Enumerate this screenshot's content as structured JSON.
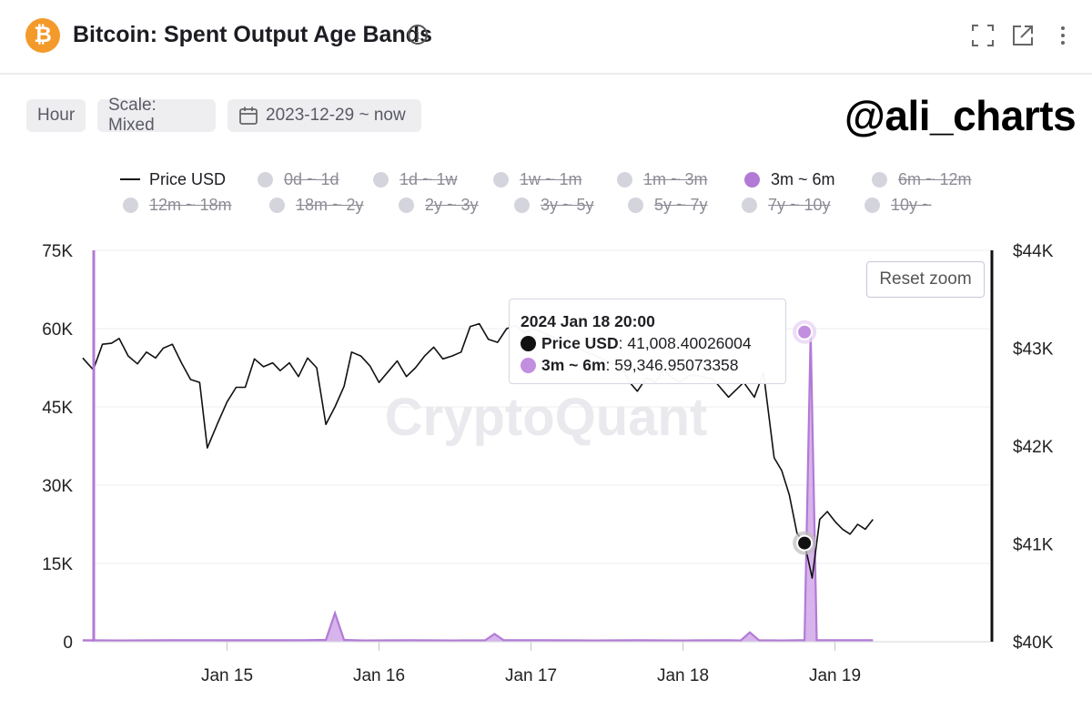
{
  "header": {
    "title": "Bitcoin: Spent Output Age Bands",
    "logo_glyph": "₿",
    "info_glyph": "i",
    "icons": [
      "fullscreen-icon",
      "external-link-icon",
      "more-vertical-icon"
    ]
  },
  "controls": {
    "interval": "Hour",
    "scale": "Scale: Mixed",
    "date_range": "2023-12-29 ~ now"
  },
  "watermark_handle": "@ali_charts",
  "watermark_brand": "CryptoQuant",
  "reset_zoom": "Reset zoom",
  "legend": [
    {
      "label": "Price USD",
      "state": "on",
      "kind": "line"
    },
    {
      "label": "0d ~ 1d",
      "state": "off"
    },
    {
      "label": "1d ~ 1w",
      "state": "off"
    },
    {
      "label": "1w ~ 1m",
      "state": "off"
    },
    {
      "label": "1m ~ 3m",
      "state": "off"
    },
    {
      "label": "3m ~ 6m",
      "state": "on"
    },
    {
      "label": "6m ~ 12m",
      "state": "off"
    },
    {
      "label": "12m ~ 18m",
      "state": "off"
    },
    {
      "label": "18m ~ 2y",
      "state": "off"
    },
    {
      "label": "2y ~ 3y",
      "state": "off"
    },
    {
      "label": "3y ~ 5y",
      "state": "off"
    },
    {
      "label": "5y ~ 7y",
      "state": "off"
    },
    {
      "label": "7y ~ 10y",
      "state": "off"
    },
    {
      "label": "10y ~",
      "state": "off"
    }
  ],
  "tooltip": {
    "title": "2024 Jan 18 20:00",
    "rows": [
      {
        "name": "Price USD",
        "value": "41,008.40026004",
        "color": "#111111"
      },
      {
        "name": "3m ~ 6m",
        "value": "59,346.95073358",
        "color": "#c28ee0"
      }
    ]
  },
  "colors": {
    "accent": "#b27ad6",
    "area": "#c99be4",
    "price_line": "#111111",
    "grid": "#ececf1"
  },
  "chart_data": {
    "type": "line",
    "x_tick_labels": [
      "Jan 15",
      "Jan 16",
      "Jan 17",
      "Jan 18",
      "Jan 19"
    ],
    "x_tick_days": [
      15,
      16,
      17,
      18,
      19
    ],
    "x_range_days": [
      14.0,
      19.95
    ],
    "y_left": {
      "ticks": [
        "0",
        "15K",
        "30K",
        "45K",
        "60K",
        "75K"
      ],
      "tick_values": [
        0,
        15000,
        30000,
        45000,
        60000,
        75000
      ],
      "range": [
        0,
        75000
      ]
    },
    "y_right": {
      "ticks": [
        "$40K",
        "$41K",
        "$42K",
        "$43K",
        "$44K"
      ],
      "tick_values": [
        40000,
        41000,
        42000,
        43000,
        44000
      ],
      "range": [
        40000,
        44000
      ]
    },
    "grid": true,
    "series": [
      {
        "name": "Price USD",
        "axis": "right",
        "type": "line",
        "x_day": [
          14.05,
          14.12,
          14.18,
          14.24,
          14.29,
          14.35,
          14.41,
          14.47,
          14.53,
          14.58,
          14.64,
          14.7,
          14.76,
          14.82,
          14.87,
          14.94,
          15.0,
          15.06,
          15.12,
          15.18,
          15.24,
          15.3,
          15.35,
          15.41,
          15.47,
          15.53,
          15.59,
          15.65,
          15.71,
          15.77,
          15.82,
          15.88,
          15.94,
          16.0,
          16.06,
          16.12,
          16.18,
          16.24,
          16.3,
          16.36,
          16.42,
          16.48,
          16.54,
          16.6,
          16.66,
          16.72,
          16.78,
          16.84,
          16.9,
          16.96,
          17.02,
          17.6,
          17.65,
          17.7,
          17.76,
          17.82,
          17.87,
          17.93,
          17.98,
          18.04,
          18.1,
          18.2,
          18.3,
          18.4,
          18.47,
          18.53,
          18.6,
          18.65,
          18.7,
          18.75,
          18.8,
          18.85,
          18.9,
          18.95,
          19.0,
          19.05,
          19.1,
          19.15,
          19.2,
          19.25
        ],
        "y": [
          42900,
          42780,
          43040,
          43050,
          43100,
          42920,
          42840,
          42960,
          42900,
          43000,
          43040,
          42850,
          42680,
          42650,
          41980,
          42240,
          42450,
          42600,
          42600,
          42890,
          42810,
          42850,
          42770,
          42850,
          42710,
          42900,
          42800,
          42220,
          42400,
          42610,
          42960,
          42920,
          42820,
          42650,
          42760,
          42870,
          42710,
          42800,
          42920,
          43010,
          42890,
          42920,
          42960,
          43220,
          43250,
          43090,
          43060,
          43200,
          43230,
          43160,
          43200,
          42800,
          42650,
          42560,
          42700,
          42650,
          42780,
          42700,
          42650,
          42720,
          42720,
          42680,
          42500,
          42650,
          42500,
          42750,
          41880,
          41750,
          41500,
          41110,
          41008,
          40650,
          41250,
          41330,
          41230,
          41150,
          41100,
          41200,
          41150,
          41250
        ]
      },
      {
        "name": "3m ~ 6m",
        "axis": "left",
        "type": "area",
        "x_day": [
          14.05,
          14.3,
          14.6,
          14.9,
          15.2,
          15.5,
          15.65,
          15.71,
          15.77,
          15.9,
          16.2,
          16.5,
          16.7,
          16.76,
          16.82,
          17.1,
          17.4,
          17.7,
          18.0,
          18.3,
          18.38,
          18.44,
          18.5,
          18.65,
          18.76,
          18.8,
          18.84,
          18.88,
          18.94,
          19.0,
          19.25
        ],
        "y": [
          300,
          250,
          300,
          300,
          280,
          300,
          350,
          5500,
          350,
          250,
          300,
          250,
          300,
          1500,
          300,
          300,
          250,
          300,
          250,
          300,
          250,
          1800,
          300,
          250,
          300,
          300,
          59346.95,
          300,
          300,
          300,
          300
        ]
      }
    ],
    "highlight": {
      "x_day": 18.8,
      "price": 41008.40026004,
      "band": 59346.95073358
    }
  }
}
